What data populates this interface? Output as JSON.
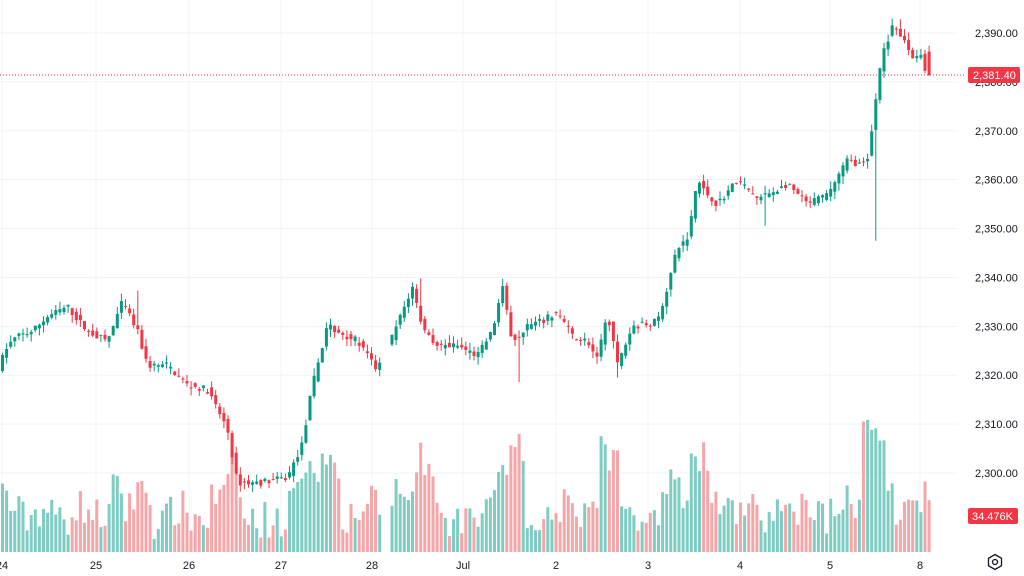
{
  "chart_data": {
    "type": "candlestick",
    "y_axis": {
      "ticks": [
        "2,300.00",
        "2,310.00",
        "2,320.00",
        "2,330.00",
        "2,340.00",
        "2,350.00",
        "2,360.00",
        "2,370.00",
        "2,380.00",
        "2,390.00"
      ],
      "tick_values": [
        2300,
        2310,
        2320,
        2330,
        2340,
        2350,
        2360,
        2370,
        2380,
        2390
      ],
      "ylim": [
        2287.4,
        2394.2
      ]
    },
    "x_axis": {
      "ticks": [
        "24",
        "25",
        "26",
        "27",
        "28",
        "Jul",
        "2",
        "3",
        "4",
        "5",
        "8"
      ]
    },
    "last_price": {
      "value": 2381.4,
      "label": "2,381.40",
      "color": "#f23645"
    },
    "volume_badge": {
      "label": "34.476K",
      "color": "#f23645"
    },
    "colors": {
      "up": "#089981",
      "down": "#f23645",
      "vol_up": "#7fcdc2",
      "vol_down": "#f5a6a8"
    },
    "trend_anchors": [
      [
        0,
        2321
      ],
      [
        10,
        2326
      ],
      [
        20,
        2328
      ],
      [
        35,
        2329
      ],
      [
        50,
        2332
      ],
      [
        70,
        2334
      ],
      [
        90,
        2329
      ],
      [
        110,
        2327
      ],
      [
        125,
        2335
      ],
      [
        140,
        2329
      ],
      [
        150,
        2322
      ],
      [
        170,
        2322
      ],
      [
        190,
        2318
      ],
      [
        210,
        2317
      ],
      [
        230,
        2309
      ],
      [
        240,
        2298
      ],
      [
        260,
        2298
      ],
      [
        290,
        2299
      ],
      [
        305,
        2306
      ],
      [
        315,
        2318
      ],
      [
        330,
        2330
      ],
      [
        360,
        2327
      ],
      [
        380,
        2321
      ],
      [
        395,
        2328
      ],
      [
        405,
        2333
      ],
      [
        415,
        2338
      ],
      [
        425,
        2330
      ],
      [
        440,
        2326
      ],
      [
        460,
        2326
      ],
      [
        480,
        2324
      ],
      [
        495,
        2329
      ],
      [
        505,
        2338
      ],
      [
        515,
        2327
      ],
      [
        530,
        2330
      ],
      [
        545,
        2331
      ],
      [
        560,
        2333
      ],
      [
        575,
        2328
      ],
      [
        590,
        2327
      ],
      [
        600,
        2323
      ],
      [
        610,
        2333
      ],
      [
        620,
        2322
      ],
      [
        635,
        2330
      ],
      [
        660,
        2331
      ],
      [
        670,
        2338
      ],
      [
        680,
        2346
      ],
      [
        690,
        2348
      ],
      [
        700,
        2360
      ],
      [
        710,
        2357
      ],
      [
        720,
        2355
      ],
      [
        740,
        2360
      ],
      [
        760,
        2356
      ],
      [
        790,
        2359
      ],
      [
        810,
        2355
      ],
      [
        830,
        2357
      ],
      [
        850,
        2364
      ],
      [
        865,
        2363
      ],
      [
        872,
        2365
      ],
      [
        877,
        2375
      ],
      [
        885,
        2386
      ],
      [
        895,
        2391
      ],
      [
        905,
        2389
      ],
      [
        915,
        2385
      ],
      [
        925,
        2386
      ],
      [
        928,
        2381.4
      ]
    ],
    "spikes": [
      {
        "x": 874,
        "low": 2347.5
      },
      {
        "x": 517,
        "low": 2318.6
      },
      {
        "x": 420,
        "high": 2339.8
      },
      {
        "x": 137,
        "high": 2337.3
      },
      {
        "x": 763,
        "low": 2350.6
      },
      {
        "x": 618,
        "low": 2319.5
      },
      {
        "x": 900,
        "high": 2392.8
      }
    ]
  }
}
